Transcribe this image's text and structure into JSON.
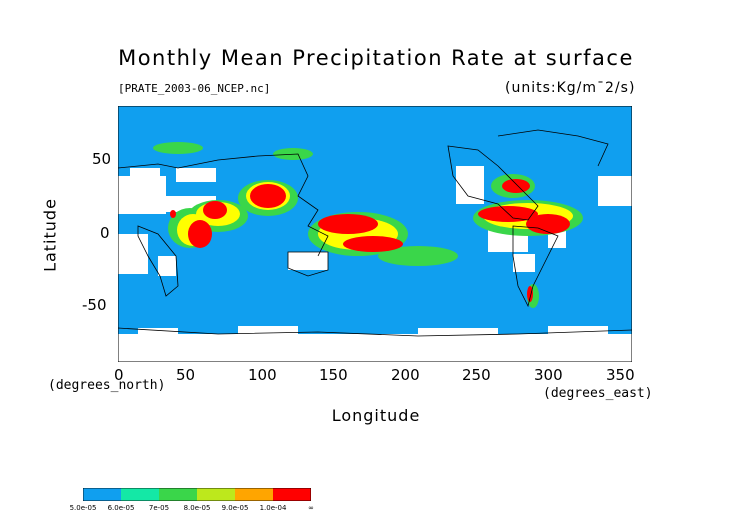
{
  "title": "Monthly Mean Precipitation Rate at surface",
  "file_label": "[PRATE_2003-06_NCEP.nc]",
  "units_label": "(units:Kg/m¯2/s)",
  "y_axis": {
    "label": "Latitude",
    "units": "(degrees_north)",
    "ticks": [
      "50",
      "0",
      "-50"
    ]
  },
  "x_axis": {
    "label": "Longitude",
    "units": "(degrees_east)",
    "ticks": [
      "0",
      "50",
      "100",
      "150",
      "200",
      "250",
      "300",
      "350"
    ]
  },
  "legend": {
    "labels": [
      "5.0e-05",
      "6.0e-05",
      "7e-05",
      "8.0e-05",
      "9.0e-05",
      "1.0e-04",
      "∞"
    ],
    "colors": [
      "#109fef",
      "#14e8a6",
      "#3ad64a",
      "#bde81c",
      "#ffff00",
      "#ffa500",
      "#ff0000"
    ]
  },
  "colors": {
    "base": "#109fef",
    "missing": "#ffffff",
    "high": "#ff0000"
  }
}
